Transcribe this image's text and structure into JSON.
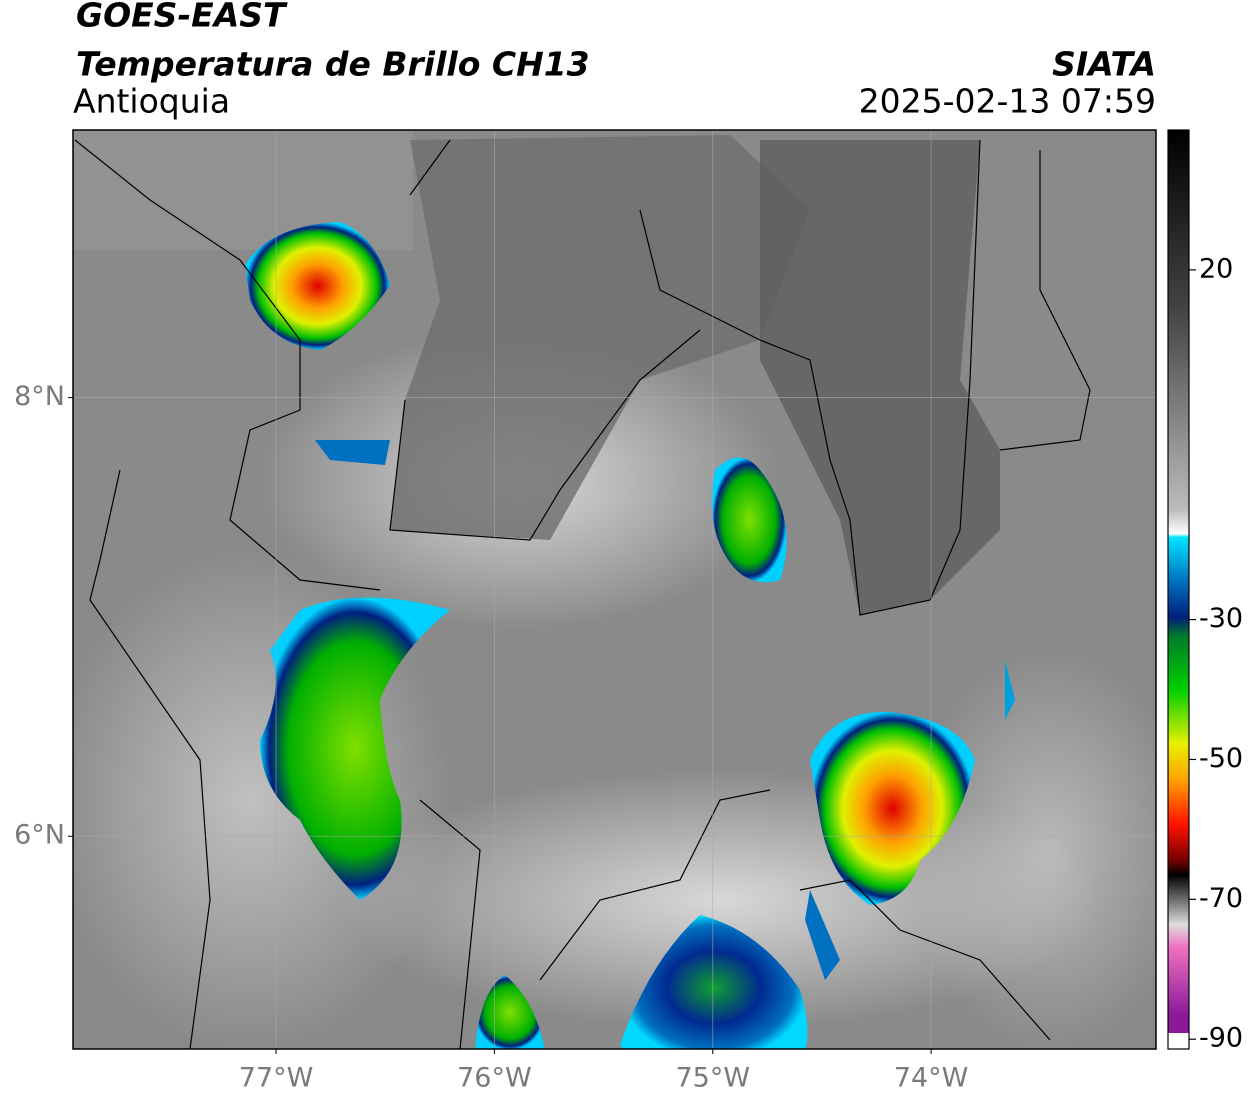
{
  "header": {
    "title": "GOES-EAST",
    "subtitle": "Temperatura de Brillo CH13",
    "region": "Antioquia",
    "source": "SIATA",
    "datetime": "2025-02-13 07:59"
  },
  "map": {
    "xlim": [
      -77.93,
      -72.97
    ],
    "ylim": [
      5.03,
      9.22
    ],
    "xticks": [
      {
        "value": -77,
        "label": "77°W"
      },
      {
        "value": -76,
        "label": "76°W"
      },
      {
        "value": -75,
        "label": "75°W"
      },
      {
        "value": -74,
        "label": "74°W"
      }
    ],
    "yticks": [
      {
        "value": 6,
        "label": "6°N"
      },
      {
        "value": 8,
        "label": "8°N"
      }
    ],
    "grid": true
  },
  "colorbar": {
    "lim": [
      -91.4,
      40
    ],
    "ticks": [
      20,
      -30,
      -50,
      -70,
      -90
    ]
  }
}
